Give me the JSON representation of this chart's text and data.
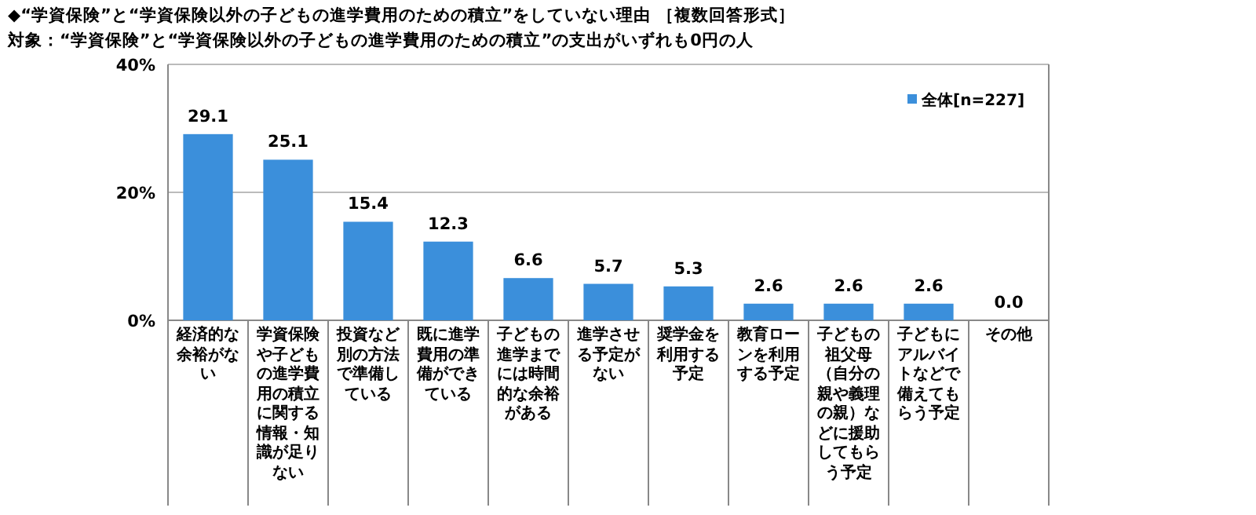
{
  "chart_data": {
    "type": "bar",
    "title": "◆“学資保険”と“学資保険以外の子どもの進学費用のための積立”をしていない理由 ［複数回答形式］",
    "subtitle": "対象：“学資保険”と“学資保険以外の子どもの進学費用のための積立”の支出がいずれも0円の人",
    "categories": [
      "経済的な余裕がない",
      "学資保険や子どもの進学費用の積立に関する情報・知識が足りない",
      "投資など別の方法で準備している",
      "既に進学費用の準備ができている",
      "子どもの進学までには時間的な余裕がある",
      "進学させる予定がない",
      "奨学金を利用する予定",
      "教育ローンを利用する予定",
      "子どもの祖父母（自分の親や義理の親）などに援助してもらう予定",
      "子どもにアルバイトなどで備えてもらう予定",
      "その他"
    ],
    "series": [
      {
        "name": "全体[n=227]",
        "color": "#3b8fdb",
        "values": [
          29.1,
          25.1,
          15.4,
          12.3,
          6.6,
          5.7,
          5.3,
          2.6,
          2.6,
          2.6,
          0
        ],
        "value_labels": [
          "29.1",
          "25.1",
          "15.4",
          "12.3",
          "6.6",
          "5.7",
          "5.3",
          "2.6",
          "2.6",
          "2.6",
          "0.0"
        ]
      }
    ],
    "ylim": [
      0,
      40
    ],
    "yticks": [
      {
        "value": 0,
        "label": "0%"
      },
      {
        "value": 20,
        "label": "20%"
      },
      {
        "value": 40,
        "label": "40%"
      }
    ],
    "grid": "y",
    "legend": "top right"
  }
}
